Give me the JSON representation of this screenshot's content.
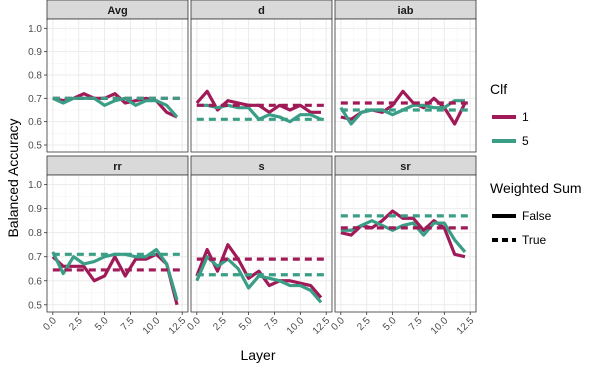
{
  "chart_data": {
    "type": "line",
    "xlabel": "Layer",
    "ylabel": "Balanced Accuracy",
    "xlim": [
      0,
      12.5
    ],
    "ylim": [
      0.47,
      1.04
    ],
    "x_ticks": [
      "0.0",
      "2.5",
      "5.0",
      "7.5",
      "10.0",
      "12.5"
    ],
    "y_ticks": [
      "0.5",
      "0.6",
      "0.7",
      "0.8",
      "0.9",
      "1.0"
    ],
    "x": [
      0,
      1,
      2,
      3,
      4,
      5,
      6,
      7,
      8,
      9,
      10,
      11,
      12
    ],
    "grid": true,
    "legend_placement": "right",
    "colors": {
      "1": "#a01a58",
      "5": "#3a9e86"
    },
    "legend": {
      "clf_title": "Clf",
      "clf_items": [
        {
          "label": "1",
          "color": "#a01a58"
        },
        {
          "label": "5",
          "color": "#3a9e86"
        }
      ],
      "ws_title": "Weighted Sum",
      "ws_items": [
        {
          "label": "False",
          "style": "solid"
        },
        {
          "label": "True",
          "style": "dashed"
        }
      ]
    },
    "panels": [
      {
        "name": "Avg",
        "series": [
          {
            "clf": "1",
            "weighted": false,
            "values": [
              0.7,
              0.69,
              0.7,
              0.72,
              0.7,
              0.7,
              0.72,
              0.68,
              0.69,
              0.7,
              0.69,
              0.64,
              0.62
            ]
          },
          {
            "clf": "5",
            "weighted": false,
            "values": [
              0.7,
              0.68,
              0.7,
              0.7,
              0.7,
              0.67,
              0.69,
              0.7,
              0.67,
              0.69,
              0.69,
              0.67,
              0.62
            ]
          },
          {
            "clf": "1",
            "weighted": true,
            "value": 0.7
          },
          {
            "clf": "5",
            "weighted": true,
            "value": 0.7
          }
        ]
      },
      {
        "name": "d",
        "series": [
          {
            "clf": "1",
            "weighted": false,
            "values": [
              0.68,
              0.73,
              0.65,
              0.69,
              0.68,
              0.67,
              0.67,
              0.64,
              0.67,
              0.65,
              0.67,
              0.64,
              0.64
            ]
          },
          {
            "clf": "5",
            "weighted": false,
            "values": [
              0.67,
              0.67,
              0.66,
              0.67,
              0.66,
              0.66,
              0.61,
              0.63,
              0.62,
              0.6,
              0.63,
              0.63,
              0.61
            ]
          },
          {
            "clf": "1",
            "weighted": true,
            "value": 0.67
          },
          {
            "clf": "5",
            "weighted": true,
            "value": 0.61
          }
        ]
      },
      {
        "name": "iab",
        "series": [
          {
            "clf": "1",
            "weighted": false,
            "values": [
              0.62,
              0.61,
              0.64,
              0.65,
              0.64,
              0.67,
              0.73,
              0.68,
              0.66,
              0.7,
              0.66,
              0.59,
              0.68
            ]
          },
          {
            "clf": "5",
            "weighted": false,
            "values": [
              0.66,
              0.59,
              0.64,
              0.65,
              0.65,
              0.63,
              0.65,
              0.67,
              0.67,
              0.66,
              0.66,
              0.69,
              0.69
            ]
          },
          {
            "clf": "1",
            "weighted": true,
            "value": 0.68
          },
          {
            "clf": "5",
            "weighted": true,
            "value": 0.65
          }
        ]
      },
      {
        "name": "rr",
        "series": [
          {
            "clf": "1",
            "weighted": false,
            "values": [
              0.7,
              0.66,
              0.66,
              0.66,
              0.6,
              0.62,
              0.7,
              0.62,
              0.69,
              0.69,
              0.71,
              0.67,
              0.5
            ]
          },
          {
            "clf": "5",
            "weighted": false,
            "values": [
              0.72,
              0.63,
              0.7,
              0.67,
              0.68,
              0.7,
              0.71,
              0.71,
              0.7,
              0.7,
              0.73,
              0.67,
              0.52
            ]
          },
          {
            "clf": "1",
            "weighted": true,
            "value": 0.645
          },
          {
            "clf": "5",
            "weighted": true,
            "value": 0.71
          }
        ]
      },
      {
        "name": "s",
        "series": [
          {
            "clf": "1",
            "weighted": false,
            "values": [
              0.62,
              0.73,
              0.64,
              0.75,
              0.69,
              0.61,
              0.64,
              0.58,
              0.6,
              0.6,
              0.59,
              0.58,
              0.53
            ]
          },
          {
            "clf": "5",
            "weighted": false,
            "values": [
              0.6,
              0.7,
              0.66,
              0.69,
              0.65,
              0.57,
              0.62,
              0.61,
              0.6,
              0.58,
              0.58,
              0.56,
              0.51
            ]
          },
          {
            "clf": "1",
            "weighted": true,
            "value": 0.69
          },
          {
            "clf": "5",
            "weighted": true,
            "value": 0.625
          }
        ]
      },
      {
        "name": "sr",
        "series": [
          {
            "clf": "1",
            "weighted": false,
            "values": [
              0.8,
              0.79,
              0.83,
              0.82,
              0.85,
              0.89,
              0.86,
              0.86,
              0.81,
              0.85,
              0.82,
              0.71,
              0.7
            ]
          },
          {
            "clf": "5",
            "weighted": false,
            "values": [
              0.81,
              0.81,
              0.83,
              0.85,
              0.83,
              0.81,
              0.83,
              0.84,
              0.79,
              0.84,
              0.84,
              0.77,
              0.72
            ]
          },
          {
            "clf": "1",
            "weighted": true,
            "value": 0.82
          },
          {
            "clf": "5",
            "weighted": true,
            "value": 0.87
          }
        ]
      }
    ]
  }
}
